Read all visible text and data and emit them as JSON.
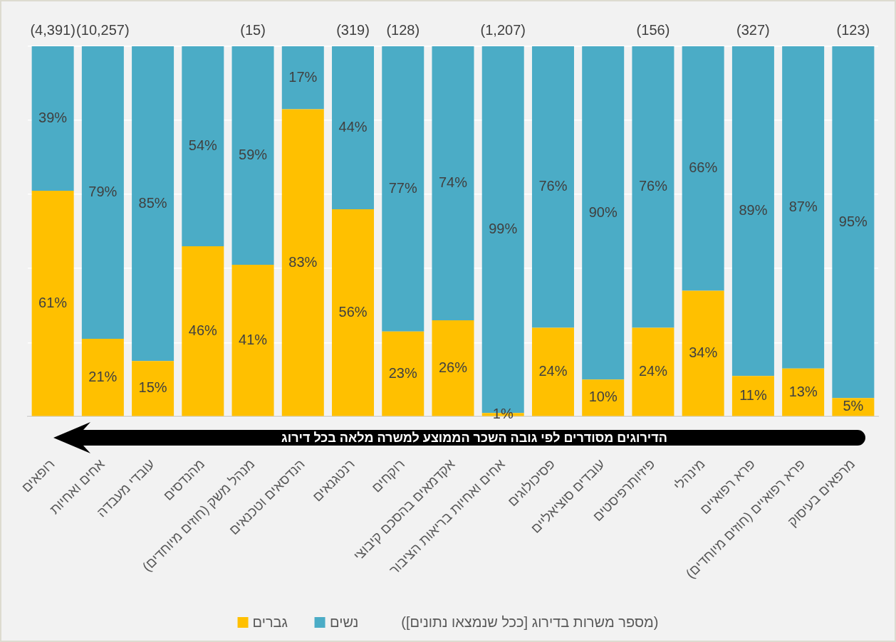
{
  "chart_data": {
    "type": "bar",
    "stacked": true,
    "categories": [
      "רופאים",
      "אחים ואחיות",
      "עובדי מעבדה",
      "מהנדסים",
      "מנהל משק (חוזים מיוחדים)",
      "הנדסאים וטכנאים",
      "רנטגנאים",
      "רוקחים",
      "אקדמאים בהסכם קיבוצי",
      "אחים ואחיות בריאות הציבור",
      "פסיכולוגים",
      "עובדים סוציאליים",
      "פיזיותרפיסטים",
      "מינהלי",
      "פרא רפואיים",
      "פרא רפואיים (חוזים מיוחדים)",
      "מרפאים בעיסוק"
    ],
    "series": [
      {
        "name": "גברים",
        "color": "#ffc000",
        "values": [
          61,
          21,
          15,
          46,
          41,
          83,
          56,
          23,
          26,
          1,
          24,
          10,
          24,
          34,
          11,
          13,
          5
        ],
        "value_labels": [
          "61%",
          "21%",
          "15%",
          "46%",
          "41%",
          "83%",
          "56%",
          "23%",
          "26%",
          "1%",
          "24%",
          "10%",
          "24%",
          "34%",
          "11%",
          "13%",
          "5%"
        ]
      },
      {
        "name": "נשים",
        "color": "#4bacc6",
        "values": [
          39,
          79,
          85,
          54,
          59,
          17,
          44,
          77,
          74,
          99,
          76,
          90,
          76,
          66,
          89,
          87,
          95
        ],
        "value_labels": [
          "39%",
          "79%",
          "85%",
          "54%",
          "59%",
          "17%",
          "44%",
          "77%",
          "74%",
          "99%",
          "76%",
          "90%",
          "76%",
          "66%",
          "89%",
          "87%",
          "95%"
        ]
      }
    ],
    "ylim": [
      0,
      100
    ],
    "yticks": [
      {
        "value": 0,
        "label": null
      },
      {
        "value": 20,
        "label": null
      },
      {
        "value": 40,
        "label": null
      },
      {
        "value": 60,
        "label": null
      },
      {
        "value": 80,
        "label": null
      },
      {
        "value": 100,
        "label": null
      }
    ],
    "grid": "y",
    "tick_labels": "x",
    "legend": "bottom",
    "legend_title": "(מספר משרות בדירוג [ככל שנמצאו נתונים])",
    "annotations": [
      "הדירוגים מסודרים לפי גובה השכר הממוצע למשרה מלאה בכל דירוג",
      {
        "text": "(4,391)",
        "x": "רופאים",
        "y": 100
      },
      {
        "text": "(10,257)",
        "x": "אחים ואחיות",
        "y": 100
      },
      {
        "text": "(15)",
        "x": "מנהל משק (חוזים מיוחדים)",
        "y": 100
      },
      {
        "text": "(319)",
        "x": "רנטגנאים",
        "y": 100
      },
      {
        "text": "(128)",
        "x": "רוקחים",
        "y": 100
      },
      {
        "text": "(1,207)",
        "x": "אחים ואחיות בריאות הציבור",
        "y": 100
      },
      {
        "text": "(156)",
        "x": "פיזיותרפיסטים",
        "y": 100
      },
      {
        "text": "(327)",
        "x": "פרא רפואיים",
        "y": 100
      },
      {
        "text": "(123)",
        "x": "מרפאים בעיסוק",
        "y": 100
      }
    ]
  }
}
